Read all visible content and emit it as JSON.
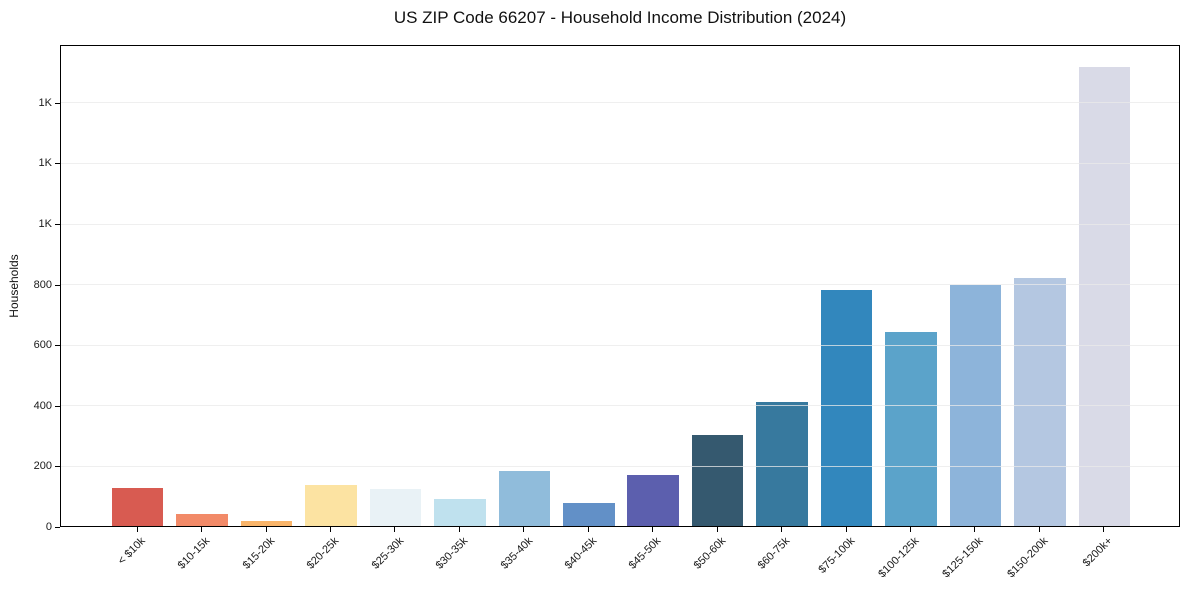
{
  "chart_data": {
    "type": "bar",
    "title": "US ZIP Code 66207 - Household Income Distribution (2024)",
    "xlabel": "",
    "ylabel": "Households",
    "categories": [
      "< $10k",
      "$10-15k",
      "$15-20k",
      "$20-25k",
      "$25-30k",
      "$30-35k",
      "$35-40k",
      "$40-45k",
      "$45-50k",
      "$50-60k",
      "$60-75k",
      "$75-100k",
      "$100-125k",
      "$125-150k",
      "$150-200k",
      "$200k+"
    ],
    "values": [
      125,
      40,
      15,
      137,
      122,
      90,
      183,
      75,
      170,
      300,
      410,
      780,
      640,
      795,
      818,
      1515
    ],
    "bar_colors": [
      "#d85b51",
      "#f28a68",
      "#f9b469",
      "#fce3a2",
      "#e9f2f6",
      "#bfe1ee",
      "#90bcdb",
      "#6290c7",
      "#5c5fae",
      "#35596f",
      "#37799e",
      "#3287bd",
      "#5ba3ca",
      "#8db4da",
      "#b4c7e1",
      "#d9dae7"
    ],
    "ylim": [
      0,
      1591
    ],
    "yticks": [
      0,
      200,
      400,
      600,
      800,
      1000,
      1200,
      1400
    ],
    "ytick_labels": [
      "0",
      "200",
      "400",
      "600",
      "800",
      "1K",
      "1K",
      "1K"
    ],
    "bar_width_fraction": 0.8,
    "grid": true,
    "grid_color": "#e9e9e9",
    "legend": false,
    "background": "#ffffff"
  }
}
